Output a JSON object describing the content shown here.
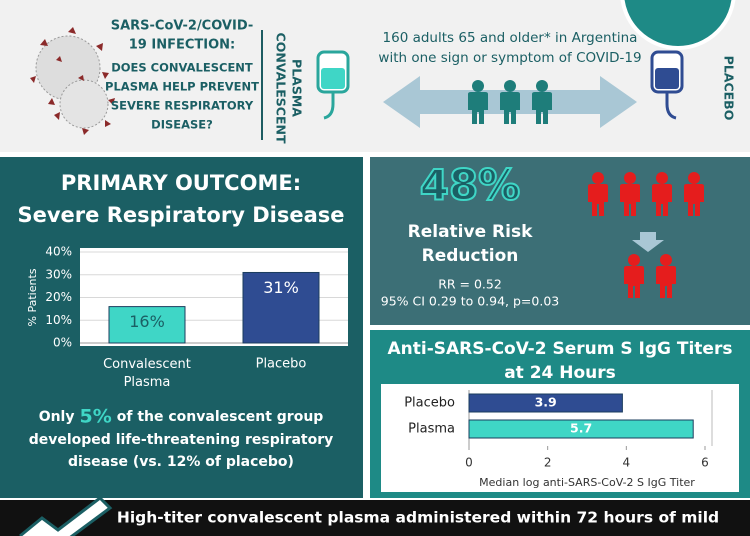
{
  "header": {
    "question": [
      "SARS-CoV-2/COVID-",
      "19 INFECTION:",
      "DOES CONVALESCENT",
      "PLASMA HELP PREVENT",
      "SEVERE RESPIRATORY",
      "DISEASE?"
    ],
    "arm1": [
      "CONVALESCENT",
      "PLASMA"
    ],
    "population": [
      "160 adults 65 and older* in Argentina",
      "with one sign or symptom of COVID-19"
    ],
    "arm2": "PLACEBO"
  },
  "risk": {
    "value": "48%",
    "label": [
      "Relative Risk",
      "Reduction"
    ],
    "rr": "RR = 0.52",
    "ci": "95% CI 0.29 to 0.94, p=0.03"
  },
  "note": {
    "before": "Only",
    "highlight": "5%",
    "lines": [
      "of the convalescent group",
      "developed life-threatening respiratory",
      "disease (vs. 12% of placebo)"
    ]
  },
  "footer": "High-titer convalescent plasma administered within 72 hours of mild",
  "chart_data": [
    {
      "type": "bar",
      "title": [
        "PRIMARY OUTCOME:",
        "Severe Respiratory Disease"
      ],
      "categories": [
        "Convalescent Plasma",
        "Placebo"
      ],
      "values": [
        16,
        31
      ],
      "value_labels": [
        "16%",
        "31%"
      ],
      "colors": [
        "#3fd6c6",
        "#2f4c92"
      ],
      "ylabel": "% Patients",
      "ylim": [
        0,
        40
      ],
      "yticks": [
        {
          "value": 0,
          "label": "0%"
        },
        {
          "value": 10,
          "label": "10%"
        },
        {
          "value": 20,
          "label": "20%"
        },
        {
          "value": 30,
          "label": "30%"
        },
        {
          "value": 40,
          "label": "40%"
        }
      ],
      "grid": true
    },
    {
      "type": "hbar",
      "title": [
        "Anti-SARS-CoV-2 Serum S IgG Titers",
        "at 24 Hours"
      ],
      "categories": [
        "Placebo",
        "Plasma"
      ],
      "values": [
        3.9,
        5.7
      ],
      "colors": [
        "#2f4c92",
        "#3fd6c6"
      ],
      "xlabel": "Median log anti-SARS-CoV-2 S IgG Titer",
      "xlim": [
        0,
        6
      ],
      "xticks": [
        0,
        2,
        4,
        6
      ]
    }
  ]
}
